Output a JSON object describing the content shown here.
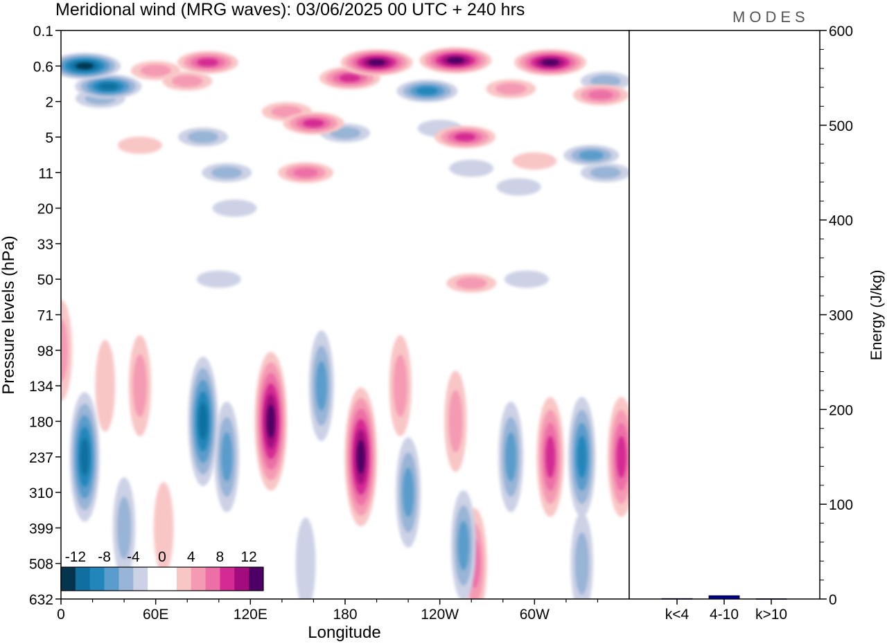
{
  "header": {
    "title": "Meridional wind (MRG waves):  03/06/2025  00 UTC  + 240 hrs",
    "logo": "MODES"
  },
  "colors": {
    "neg12": "#05344f",
    "neg10": "#106f9e",
    "neg8": "#2386ba",
    "neg6": "#5a9ccb",
    "neg4": "#98b4d6",
    "neg2": "#ccd1e5",
    "zero": "#ffffff",
    "pos2": "#f9c6c6",
    "pos4": "#f59ab3",
    "pos6": "#ec6fa6",
    "pos8": "#d42a93",
    "pos10": "#a30c7f",
    "pos12": "#4d0063",
    "bar": "#00008b"
  },
  "chart_data": [
    {
      "type": "heatmap",
      "title": "Meridional wind (MRG waves):  03/06/2025  00 UTC  + 240 hrs",
      "xlabel": "Longitude",
      "ylabel": "Pressure levels (hPa)",
      "x_tick_labels": [
        "0",
        "60E",
        "120E",
        "180",
        "120W",
        "60W"
      ],
      "y_tick_labels": [
        "0.1",
        "0.6",
        "2",
        "5",
        "11",
        "20",
        "33",
        "50",
        "71",
        "98",
        "134",
        "180",
        "237",
        "310",
        "399",
        "508",
        "632"
      ],
      "colorbar": {
        "labels": [
          "-12",
          "-8",
          "-4",
          "0",
          "4",
          "8",
          "12"
        ],
        "levels": [
          -12,
          -10,
          -8,
          -6,
          -4,
          -2,
          0,
          2,
          4,
          6,
          8,
          10,
          12
        ]
      },
      "features": [
        {
          "lon": 15,
          "lev": 0.6,
          "value": -12
        },
        {
          "lon": 30,
          "lev": 1.2,
          "value": -10
        },
        {
          "lon": 25,
          "lev": 1.8,
          "value": -4
        },
        {
          "lon": 60,
          "lev": 0.7,
          "value": 4
        },
        {
          "lon": 93,
          "lev": 0.5,
          "value": 8
        },
        {
          "lon": 80,
          "lev": 1.0,
          "value": 4
        },
        {
          "lon": 200,
          "lev": 0.5,
          "value": 12
        },
        {
          "lon": 183,
          "lev": 0.9,
          "value": 8
        },
        {
          "lon": 250,
          "lev": 0.45,
          "value": 12
        },
        {
          "lon": 232,
          "lev": 1.4,
          "value": -8
        },
        {
          "lon": 310,
          "lev": 0.5,
          "value": 12
        },
        {
          "lon": 285,
          "lev": 1.3,
          "value": 4
        },
        {
          "lon": 342,
          "lev": 1.6,
          "value": 6
        },
        {
          "lon": 345,
          "lev": 1.0,
          "value": -4
        },
        {
          "lon": 160,
          "lev": 3.5,
          "value": 8
        },
        {
          "lon": 143,
          "lev": 2.6,
          "value": 4
        },
        {
          "lon": 256,
          "lev": 5.0,
          "value": 8
        },
        {
          "lon": 240,
          "lev": 4.0,
          "value": -2
        },
        {
          "lon": 180,
          "lev": 4.5,
          "value": -4
        },
        {
          "lon": 336,
          "lev": 7.5,
          "value": -6
        },
        {
          "lon": 90,
          "lev": 5.0,
          "value": -4
        },
        {
          "lon": 50,
          "lev": 6.0,
          "value": 2
        },
        {
          "lon": 155,
          "lev": 11,
          "value": 6
        },
        {
          "lon": 300,
          "lev": 8.5,
          "value": 2
        },
        {
          "lon": 260,
          "lev": 10,
          "value": -2
        },
        {
          "lon": 105,
          "lev": 11,
          "value": -4
        },
        {
          "lon": 345,
          "lev": 11,
          "value": -4
        },
        {
          "lon": 290,
          "lev": 14,
          "value": -2
        },
        {
          "lon": 110,
          "lev": 20,
          "value": -2
        },
        {
          "lon": 100,
          "lev": 50,
          "value": -2
        },
        {
          "lon": 260,
          "lev": 52,
          "value": 4
        },
        {
          "lon": 295,
          "lev": 50,
          "value": -2
        },
        {
          "lon": 0,
          "lev": 98,
          "value": 4
        },
        {
          "lon": 15,
          "lev": 237,
          "value": -10
        },
        {
          "lon": 28,
          "lev": 134,
          "value": 2
        },
        {
          "lon": 50,
          "lev": 134,
          "value": 4
        },
        {
          "lon": 90,
          "lev": 180,
          "value": -10
        },
        {
          "lon": 105,
          "lev": 237,
          "value": -6
        },
        {
          "lon": 133,
          "lev": 180,
          "value": 12
        },
        {
          "lon": 165,
          "lev": 134,
          "value": -6
        },
        {
          "lon": 190,
          "lev": 237,
          "value": 12
        },
        {
          "lon": 215,
          "lev": 134,
          "value": 4
        },
        {
          "lon": 220,
          "lev": 310,
          "value": -6
        },
        {
          "lon": 250,
          "lev": 180,
          "value": 4
        },
        {
          "lon": 262,
          "lev": 508,
          "value": 6
        },
        {
          "lon": 255,
          "lev": 450,
          "value": -6
        },
        {
          "lon": 285,
          "lev": 237,
          "value": -6
        },
        {
          "lon": 310,
          "lev": 237,
          "value": 8
        },
        {
          "lon": 330,
          "lev": 237,
          "value": -8
        },
        {
          "lon": 355,
          "lev": 237,
          "value": 8
        },
        {
          "lon": 40,
          "lev": 399,
          "value": -4
        },
        {
          "lon": 65,
          "lev": 399,
          "value": 2
        },
        {
          "lon": 155,
          "lev": 508,
          "value": -2
        },
        {
          "lon": 330,
          "lev": 508,
          "value": -4
        }
      ]
    },
    {
      "type": "bar",
      "ylabel": "Energy (J/kg)",
      "categories": [
        "k<4",
        "4-10",
        "k>10"
      ],
      "values": [
        0.5,
        3.5,
        0.3
      ],
      "ylim": [
        0,
        600
      ],
      "y_tick_labels": [
        "0",
        "100",
        "200",
        "300",
        "400",
        "500",
        "600"
      ]
    }
  ]
}
